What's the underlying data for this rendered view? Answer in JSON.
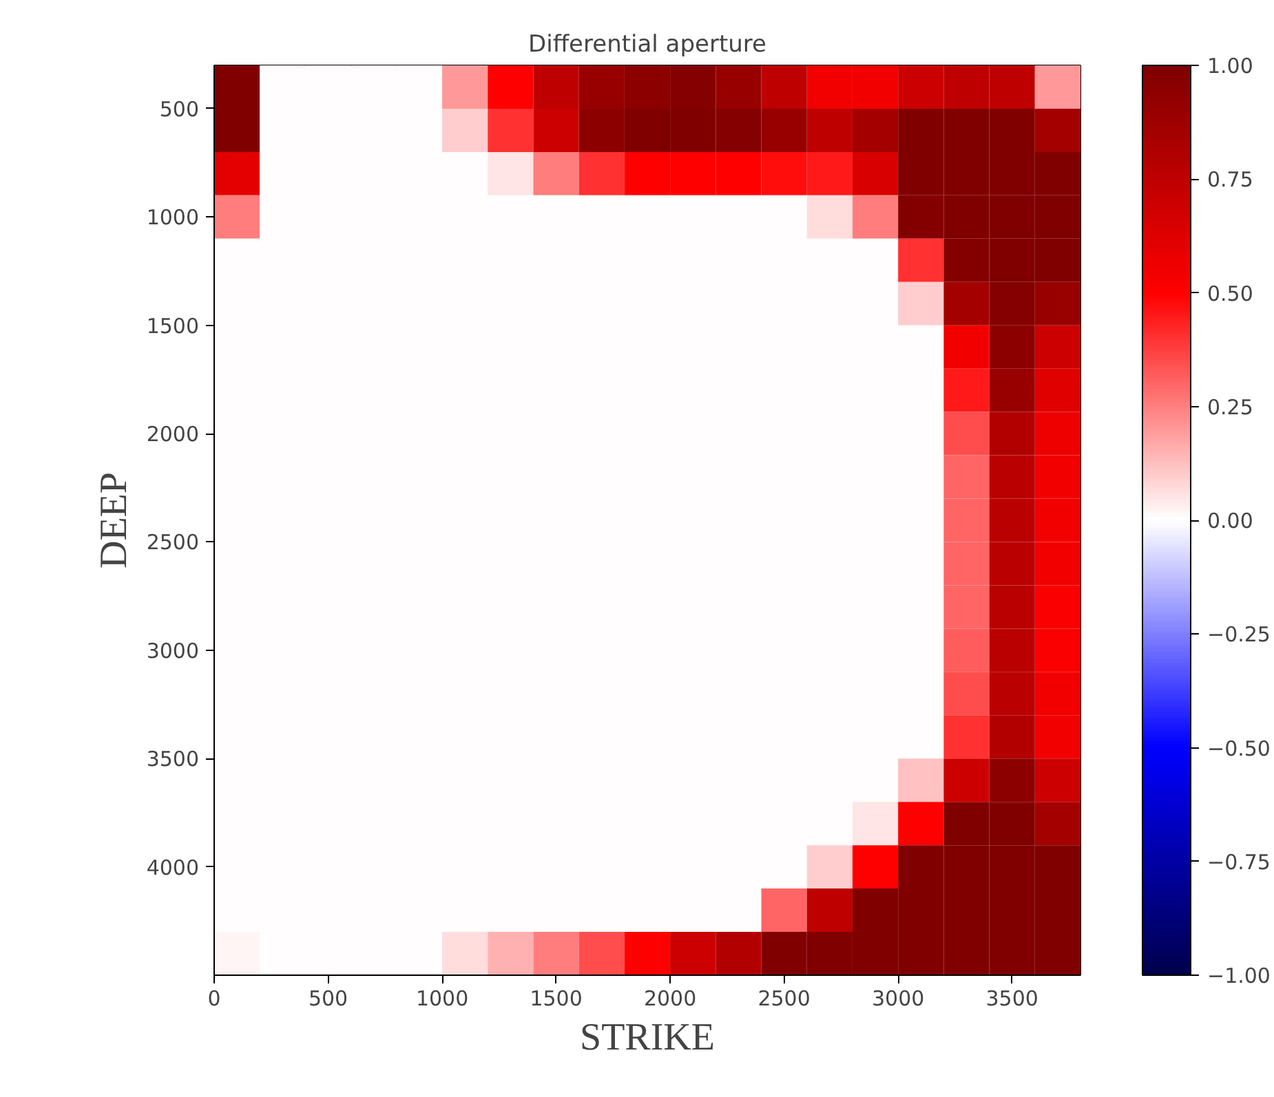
{
  "chart_data": {
    "type": "heatmap",
    "title": "Differential aperture",
    "xlabel": "STRIKE",
    "ylabel": "DEEP",
    "xlim": [
      0,
      3800
    ],
    "ylim": [
      4500,
      300
    ],
    "xticks": [
      0,
      500,
      1000,
      1500,
      2000,
      2500,
      3000,
      3500
    ],
    "yticks": [
      500,
      1000,
      1500,
      2000,
      2500,
      3000,
      3500,
      4000
    ],
    "clim": [
      -1,
      1
    ],
    "cticks": [
      {
        "value": -1,
        "label": "−1.00"
      },
      {
        "value": -0.75,
        "label": "−0.75"
      },
      {
        "value": -0.5,
        "label": "−0.50"
      },
      {
        "value": -0.25,
        "label": "−0.25"
      },
      {
        "value": 0,
        "label": "0.00"
      },
      {
        "value": 0.25,
        "label": "0.25"
      },
      {
        "value": 0.5,
        "label": "0.50"
      },
      {
        "value": 0.75,
        "label": "0.75"
      },
      {
        "value": 1,
        "label": "1.00"
      }
    ],
    "cells": [
      [
        1.0,
        0,
        0,
        0,
        0,
        0.2,
        0.5,
        0.75,
        0.9,
        0.95,
        0.97,
        0.9,
        0.75,
        0.55,
        0.55,
        0.7,
        0.75,
        0.75,
        0.2
      ],
      [
        1.0,
        0,
        0,
        0,
        0,
        0.1,
        0.4,
        0.7,
        0.95,
        1.0,
        1.0,
        0.97,
        0.9,
        0.75,
        0.85,
        1.0,
        1.0,
        1.0,
        0.85
      ],
      [
        0.6,
        0,
        0,
        0,
        0,
        0,
        0.05,
        0.25,
        0.4,
        0.5,
        0.5,
        0.5,
        0.47,
        0.45,
        0.65,
        1.0,
        1.0,
        1.0,
        1.0
      ],
      [
        0.25,
        0,
        0,
        0,
        0,
        0,
        0,
        0,
        0,
        0,
        0,
        0,
        0,
        0.07,
        0.25,
        0.98,
        1.0,
        1.0,
        1.0
      ],
      [
        0,
        0,
        0,
        0,
        0,
        0,
        0,
        0,
        0,
        0,
        0,
        0,
        0,
        0,
        0,
        0.4,
        0.98,
        1.0,
        1.0
      ],
      [
        0,
        0,
        0,
        0,
        0,
        0,
        0,
        0,
        0,
        0,
        0,
        0,
        0,
        0,
        0,
        0.1,
        0.85,
        0.97,
        0.9
      ],
      [
        0,
        0,
        0,
        0,
        0,
        0,
        0,
        0,
        0,
        0,
        0,
        0,
        0,
        0,
        0,
        0,
        0.55,
        0.95,
        0.7
      ],
      [
        0,
        0,
        0,
        0,
        0,
        0,
        0,
        0,
        0,
        0,
        0,
        0,
        0,
        0,
        0,
        0,
        0.45,
        0.9,
        0.62
      ],
      [
        0,
        0,
        0,
        0,
        0,
        0,
        0,
        0,
        0,
        0,
        0,
        0,
        0,
        0,
        0,
        0,
        0.35,
        0.8,
        0.57
      ],
      [
        0,
        0,
        0,
        0,
        0,
        0,
        0,
        0,
        0,
        0,
        0,
        0,
        0,
        0,
        0,
        0,
        0.3,
        0.77,
        0.55
      ],
      [
        0,
        0,
        0,
        0,
        0,
        0,
        0,
        0,
        0,
        0,
        0,
        0,
        0,
        0,
        0,
        0,
        0.3,
        0.77,
        0.55
      ],
      [
        0,
        0,
        0,
        0,
        0,
        0,
        0,
        0,
        0,
        0,
        0,
        0,
        0,
        0,
        0,
        0,
        0.3,
        0.77,
        0.55
      ],
      [
        0,
        0,
        0,
        0,
        0,
        0,
        0,
        0,
        0,
        0,
        0,
        0,
        0,
        0,
        0,
        0,
        0.3,
        0.77,
        0.52
      ],
      [
        0,
        0,
        0,
        0,
        0,
        0,
        0,
        0,
        0,
        0,
        0,
        0,
        0,
        0,
        0,
        0,
        0.32,
        0.77,
        0.52
      ],
      [
        0,
        0,
        0,
        0,
        0,
        0,
        0,
        0,
        0,
        0,
        0,
        0,
        0,
        0,
        0,
        0,
        0.35,
        0.77,
        0.55
      ],
      [
        0,
        0,
        0,
        0,
        0,
        0,
        0,
        0,
        0,
        0,
        0,
        0,
        0,
        0,
        0,
        0,
        0.4,
        0.8,
        0.55
      ],
      [
        0,
        0,
        0,
        0,
        0,
        0,
        0,
        0,
        0,
        0,
        0,
        0,
        0,
        0,
        0,
        0.12,
        0.7,
        0.95,
        0.7
      ],
      [
        0,
        0,
        0,
        0,
        0,
        0,
        0,
        0,
        0,
        0,
        0,
        0,
        0,
        0,
        0.05,
        0.5,
        1.0,
        1.0,
        0.85
      ],
      [
        0,
        0,
        0,
        0,
        0,
        0,
        0,
        0,
        0,
        0,
        0,
        0,
        0,
        0.1,
        0.5,
        1.0,
        1.0,
        1.0,
        1.0
      ],
      [
        0,
        0,
        0,
        0,
        0,
        0,
        0,
        0,
        0,
        0,
        0,
        0,
        0.3,
        0.75,
        1.0,
        1.0,
        1.0,
        1.0,
        1.0
      ],
      [
        0.02,
        0,
        0,
        0,
        0,
        0.07,
        0.15,
        0.25,
        0.35,
        0.5,
        0.7,
        0.8,
        1.0,
        1.0,
        1.0,
        1.0,
        1.0,
        1.0,
        1.0
      ]
    ]
  }
}
